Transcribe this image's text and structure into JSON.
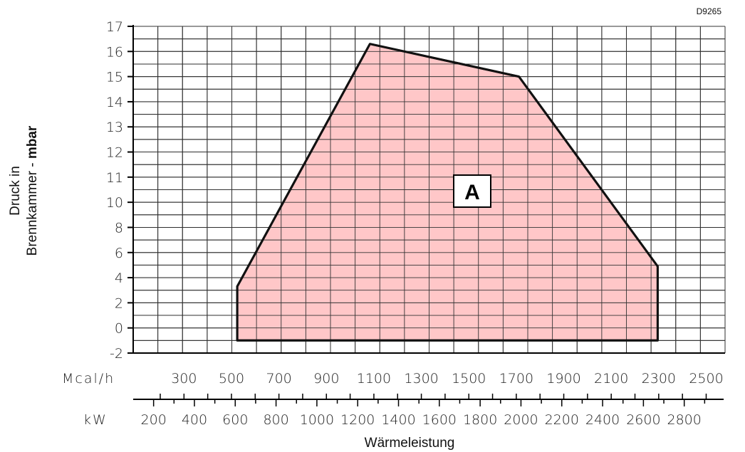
{
  "chart_data": {
    "type": "area",
    "code": "D9265",
    "ylabel_line1": "Druck in",
    "ylabel_line2": "Brennkammer - ",
    "ylabel_unit": "mbar",
    "xlabel": "Wärmeleistung",
    "region_label": "A",
    "fill_color": "#ffc7c8",
    "y_ticks": [
      "-2",
      "0",
      "2",
      "4",
      "6",
      "8",
      "10",
      "11",
      "12",
      "13",
      "14",
      "15",
      "16",
      "17"
    ],
    "mcal_label": "Mcal/h",
    "mcal_ticks": [
      300,
      500,
      700,
      900,
      1100,
      1300,
      1500,
      1700,
      1900,
      2100,
      2300,
      2500
    ],
    "kw_label": "kW",
    "kw_ticks": [
      200,
      400,
      600,
      800,
      1000,
      1200,
      1400,
      1600,
      1800,
      2000,
      2200,
      2400,
      2600,
      2800
    ],
    "xlim_kw": [
      100,
      3000
    ],
    "points": [
      {
        "x": 610,
        "y": 3.3
      },
      {
        "x": 1260,
        "y": 16.3
      },
      {
        "x": 1990,
        "y": 15
      },
      {
        "x": 2670,
        "y": 4.9
      },
      {
        "x": 2670,
        "y": -1
      },
      {
        "x": 610,
        "y": -1
      }
    ]
  }
}
